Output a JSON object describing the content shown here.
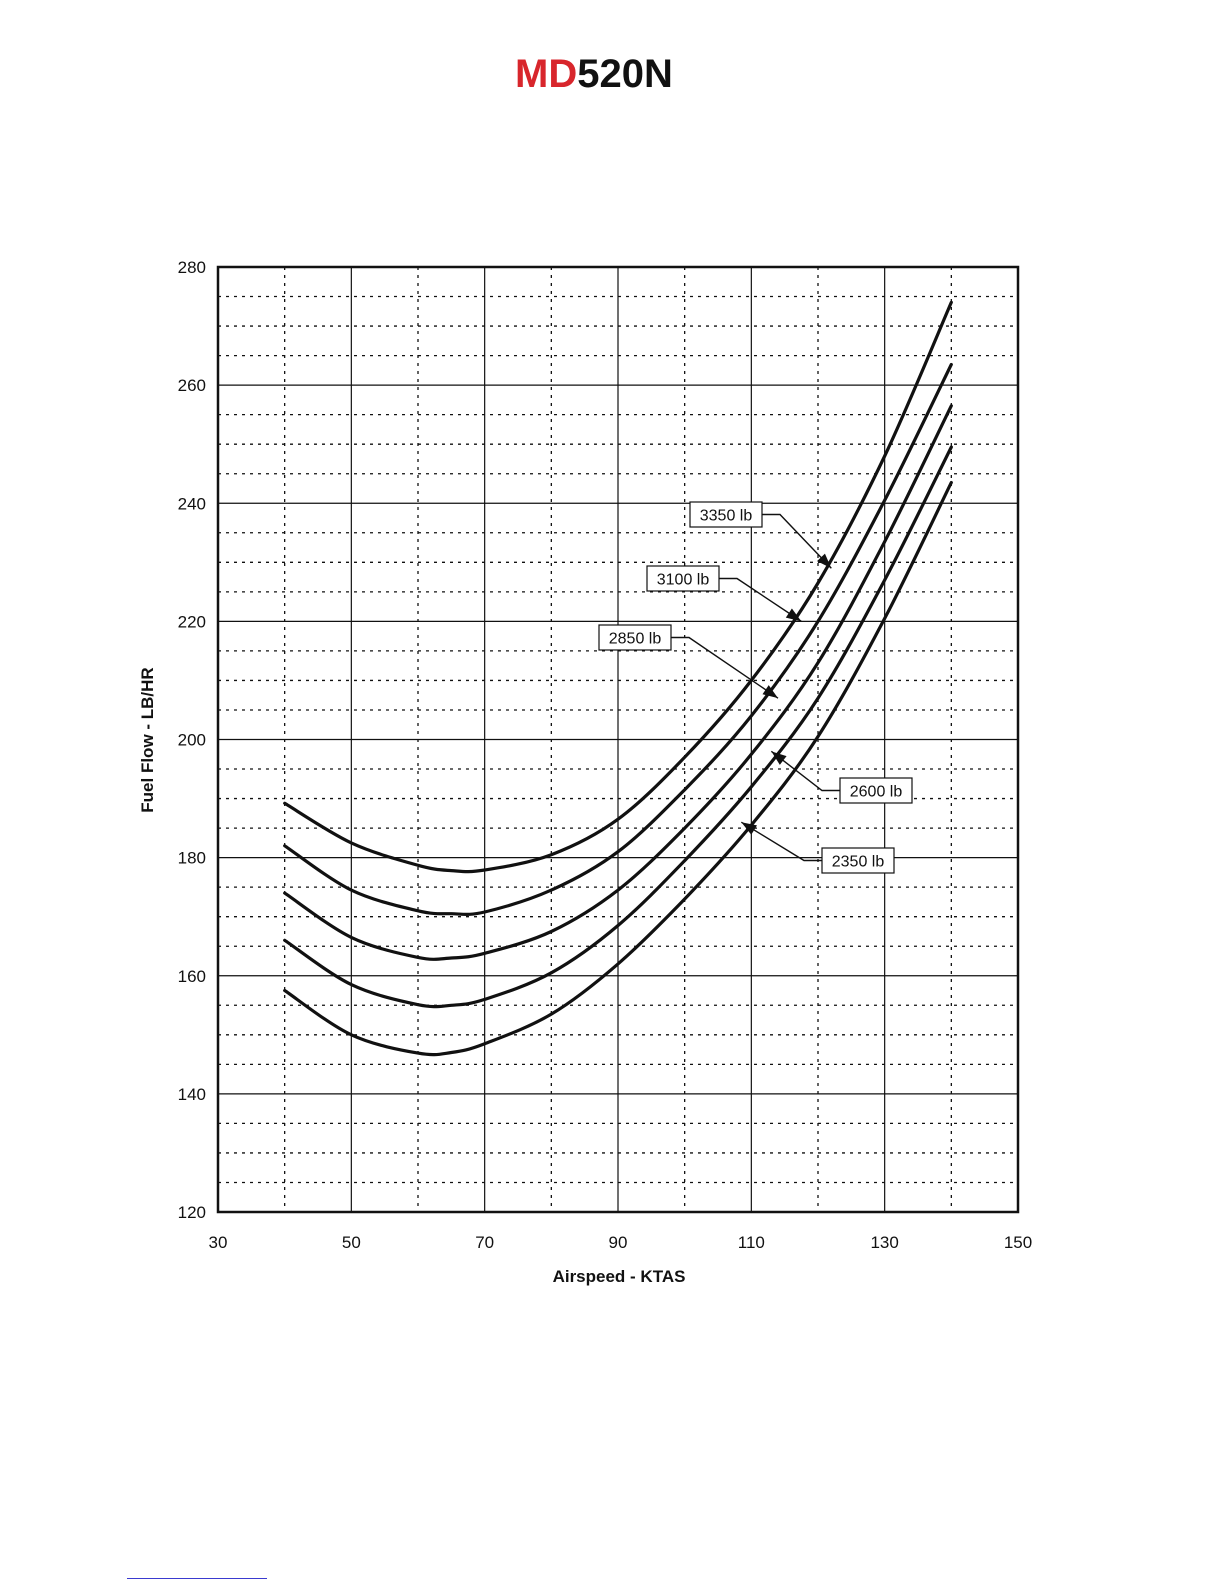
{
  "header": {
    "logo_prefix": "MD",
    "logo_suffix": "520N",
    "colors": {
      "prefix": "#d8262c",
      "suffix": "#111111"
    }
  },
  "chart_data": {
    "type": "line",
    "title": "",
    "xlabel": "Airspeed - KTAS",
    "ylabel": "Fuel Flow - LB/HR",
    "xlim": [
      30,
      150
    ],
    "ylim": [
      120,
      280
    ],
    "xticks": [
      30,
      50,
      70,
      90,
      110,
      130,
      150
    ],
    "yticks": [
      120,
      140,
      160,
      180,
      200,
      220,
      240,
      260,
      280
    ],
    "x_minor_step": 10,
    "y_minor_step": 5,
    "grid": true,
    "x": [
      40,
      50,
      60,
      65,
      70,
      80,
      90,
      100,
      110,
      120,
      130,
      140
    ],
    "series": [
      {
        "name": "3350 lb",
        "values": [
          189.2,
          182.5,
          178.7,
          177.8,
          177.9,
          180.5,
          186.5,
          197.0,
          210.0,
          226.5,
          248.0,
          274.0
        ]
      },
      {
        "name": "3100 lb",
        "values": [
          182.0,
          174.5,
          171.0,
          170.5,
          170.8,
          174.5,
          181.0,
          191.5,
          204.0,
          220.0,
          240.5,
          263.5
        ]
      },
      {
        "name": "2850 lb",
        "values": [
          174.0,
          166.5,
          163.1,
          163.0,
          163.8,
          167.5,
          174.5,
          185.0,
          197.5,
          213.0,
          233.5,
          256.5
        ]
      },
      {
        "name": "2600 lb",
        "values": [
          166.0,
          158.5,
          155.1,
          155.0,
          156.0,
          160.5,
          168.5,
          179.5,
          192.0,
          207.0,
          227.0,
          249.5
        ]
      },
      {
        "name": "2350 lb",
        "values": [
          157.5,
          150.0,
          146.9,
          147.0,
          148.5,
          153.5,
          162.0,
          173.0,
          185.5,
          200.5,
          220.5,
          243.5
        ]
      }
    ],
    "annotations": [
      {
        "text": "3350 lb",
        "series": "3350 lb",
        "arrow_to": [
          122,
          229
        ]
      },
      {
        "text": "3100 lb",
        "series": "3100 lb",
        "arrow_to": [
          117.5,
          220
        ]
      },
      {
        "text": "2850 lb",
        "series": "2850 lb",
        "arrow_to": [
          114,
          207
        ]
      },
      {
        "text": "2600 lb",
        "series": "2600 lb",
        "arrow_to": [
          113,
          198
        ]
      },
      {
        "text": "2350 lb",
        "series": "2350 lb",
        "arrow_to": [
          108.5,
          186
        ]
      }
    ]
  }
}
